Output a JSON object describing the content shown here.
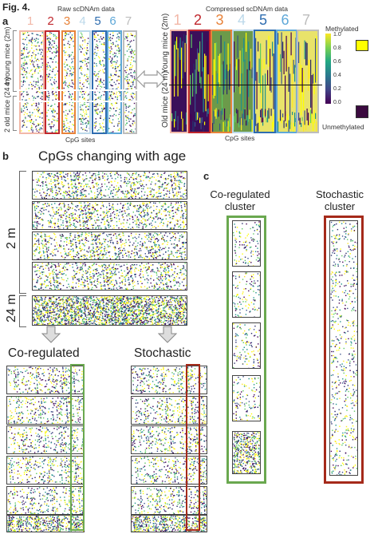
{
  "figure": {
    "label": "Fig. 4."
  },
  "panel_a": {
    "letter": "a",
    "raw_title": "Raw scDNAm data",
    "compressed_title": "Compressed scDNAm data",
    "young_label_raw": "4 young mice (2m)",
    "old_label_raw": "2 old mice (24 m)",
    "young_label_comp": "Young mice (2m)",
    "old_label_comp": "Old mice (24 m)",
    "xlabel": "CpG sites",
    "cluster_numbers": [
      "1",
      "2",
      "3",
      "4",
      "5",
      "6",
      "7"
    ],
    "cluster_colors": [
      "#f2b8a8",
      "#c0272d",
      "#e8833a",
      "#bcd9ea",
      "#2f6db0",
      "#5fa8d8",
      "#bdbdbd"
    ],
    "legend": {
      "methylated": "Methylated",
      "unmethylated": "Unmethylated",
      "ticks": [
        "1.0",
        "0.8",
        "0.6",
        "0.4",
        "0.2",
        "0.0"
      ],
      "methylated_color": "#ffff00",
      "unmethylated_color": "#3b0a3f"
    }
  },
  "panel_b": {
    "letter": "b",
    "title": "CpGs changing with age",
    "label_2m": "2 m",
    "label_24m": "24 m",
    "coregulated": "Co-regulated",
    "stochastic": "Stochastic",
    "green": "#6aa84f",
    "red": "#a52a1a"
  },
  "panel_c": {
    "letter": "c",
    "coreg_title": "Co-regulated cluster",
    "stoch_title": "Stochastic cluster"
  }
}
